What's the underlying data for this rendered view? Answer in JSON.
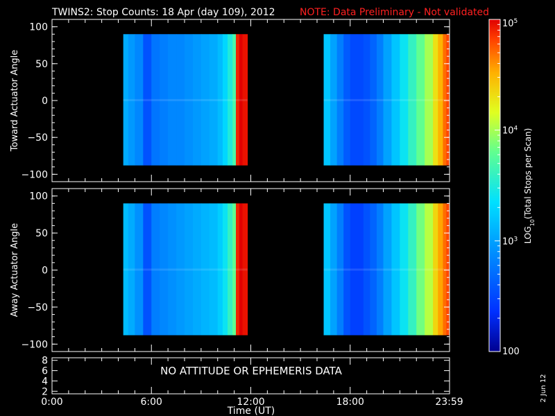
{
  "title": {
    "main": "TWINS2: Stop Counts: 18 Apr (day 109), 2012",
    "note": "NOTE: Data Preliminary - Not validated",
    "note_color": "#ff2020"
  },
  "side_date": "2 Jun 12",
  "no_data_text": "NO ATTITUDE OR EPHEMERIS DATA",
  "colorbar": {
    "label": "LOG10(Total Stops per Scan)",
    "label_prefix": "LOG",
    "label_sub": "10",
    "label_suffix": "(Total Stops per Scan)",
    "ticks": [
      {
        "value": 100,
        "text": "100"
      },
      {
        "value": 1000,
        "text": "10",
        "exp": "3"
      },
      {
        "value": 10000,
        "text": "10",
        "exp": "4"
      },
      {
        "value": 100000,
        "text": "10",
        "exp": "5"
      }
    ],
    "range": [
      100,
      100000
    ],
    "scale": "log"
  },
  "chart_data": [
    {
      "type": "heatmap",
      "ylabel": "Toward Actuator Angle",
      "xlim": [
        0,
        24
      ],
      "ylim": [
        -110,
        110
      ],
      "yticks": [
        100,
        50,
        0,
        -50,
        -100
      ],
      "data_blocks": [
        {
          "x_start": 4.3,
          "x_end": 11.8,
          "y_start": -88,
          "y_end": 90
        },
        {
          "x_start": 16.4,
          "x_end": 23.98,
          "y_start": -88,
          "y_end": 90
        }
      ],
      "profile": {
        "hours": [
          4.3,
          4.6,
          5.0,
          5.5,
          6.0,
          6.5,
          7.0,
          7.5,
          8.0,
          8.5,
          9.0,
          9.5,
          10.0,
          10.3,
          10.6,
          10.9,
          11.1,
          11.3,
          11.5,
          11.8,
          16.4,
          16.8,
          17.2,
          17.6,
          18.0,
          18.4,
          18.8,
          19.2,
          19.6,
          20.0,
          20.5,
          21.0,
          21.5,
          22.0,
          22.5,
          23.0,
          23.3,
          23.6,
          23.8,
          23.98
        ],
        "log_counts": [
          3.05,
          2.95,
          2.85,
          2.55,
          2.75,
          2.8,
          2.85,
          2.85,
          2.9,
          2.95,
          3.0,
          3.05,
          3.15,
          3.3,
          3.5,
          3.7,
          4.9,
          5.0,
          4.95,
          4.9,
          3.2,
          3.0,
          2.8,
          2.6,
          2.5,
          2.5,
          2.55,
          2.65,
          2.8,
          3.0,
          3.2,
          3.4,
          3.6,
          3.8,
          4.0,
          4.3,
          4.5,
          4.7,
          4.8,
          4.9
        ]
      }
    },
    {
      "type": "heatmap",
      "ylabel": "Away Actuator Angle",
      "xlim": [
        0,
        24
      ],
      "ylim": [
        -110,
        110
      ],
      "yticks": [
        100,
        50,
        0,
        -50,
        -100
      ],
      "data_blocks": [
        {
          "x_start": 4.3,
          "x_end": 11.8,
          "y_start": -88,
          "y_end": 90
        },
        {
          "x_start": 16.4,
          "x_end": 23.98,
          "y_start": -88,
          "y_end": 90
        }
      ],
      "profile": {
        "hours": [
          4.3,
          4.6,
          5.0,
          5.5,
          6.0,
          6.5,
          7.0,
          7.5,
          8.0,
          8.5,
          9.0,
          9.5,
          10.0,
          10.3,
          10.6,
          10.9,
          11.1,
          11.3,
          11.5,
          11.8,
          16.4,
          16.8,
          17.2,
          17.6,
          18.0,
          18.4,
          18.8,
          19.2,
          19.6,
          20.0,
          20.5,
          21.0,
          21.5,
          22.0,
          22.5,
          23.0,
          23.3,
          23.6,
          23.8,
          23.98
        ],
        "log_counts": [
          3.15,
          3.05,
          2.9,
          2.55,
          2.8,
          2.85,
          2.9,
          2.95,
          3.0,
          3.05,
          3.1,
          3.15,
          3.25,
          3.4,
          3.6,
          3.8,
          4.9,
          5.0,
          4.95,
          4.9,
          3.2,
          3.0,
          2.8,
          2.55,
          2.45,
          2.45,
          2.55,
          2.65,
          2.8,
          3.0,
          3.2,
          3.4,
          3.6,
          3.85,
          4.05,
          4.35,
          4.55,
          4.7,
          4.8,
          4.9
        ]
      }
    },
    {
      "type": "line",
      "ylabel": "",
      "xlabel": "Time (UT)",
      "xlim": [
        0,
        24
      ],
      "ylim": [
        1.5,
        8.5
      ],
      "yticks": [
        8,
        6,
        4,
        2
      ],
      "xticks": [
        {
          "value": 0,
          "text": "0:00"
        },
        {
          "value": 6,
          "text": "6:00"
        },
        {
          "value": 12,
          "text": "12:00"
        },
        {
          "value": 18,
          "text": "18:00"
        },
        {
          "value": 23.98,
          "text": "23:59"
        }
      ],
      "series": []
    }
  ]
}
